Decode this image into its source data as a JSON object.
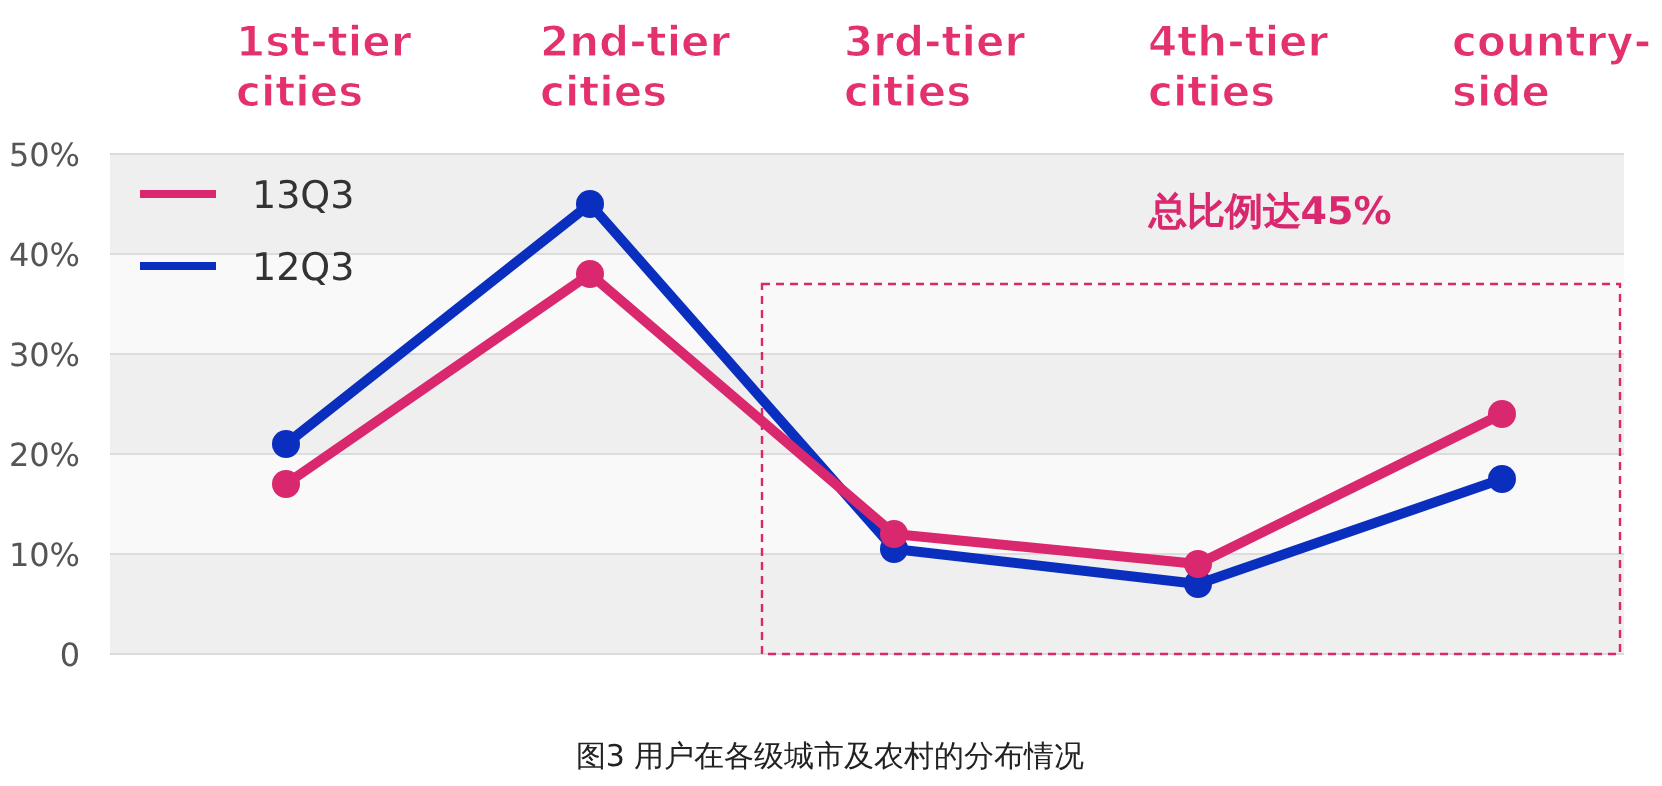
{
  "chart_data": {
    "type": "line",
    "categories": [
      "1st-tier cities",
      "2nd-tier cities",
      "3rd-tier cities",
      "4th-tier cities",
      "country-side"
    ],
    "series": [
      {
        "name": "13Q3",
        "color": "#d9286e",
        "values": [
          17,
          38,
          12,
          9,
          24
        ]
      },
      {
        "name": "12Q3",
        "color": "#0a2fbf",
        "values": [
          21,
          45,
          10.5,
          7,
          17.5
        ]
      }
    ],
    "ylim": [
      0,
      50
    ],
    "yticks": [
      {
        "value": 0,
        "label": "0"
      },
      {
        "value": 10,
        "label": "10%"
      },
      {
        "value": 20,
        "label": "20%"
      },
      {
        "value": 30,
        "label": "30%"
      },
      {
        "value": 40,
        "label": "40%"
      },
      {
        "value": 50,
        "label": "50%"
      }
    ],
    "grid": "y",
    "legend": "top left",
    "marker": "circle",
    "line_style": "solid",
    "annotations": [
      "总比例达45%",
      "图3 用户在各级城市及农村的分布情况"
    ]
  }
}
